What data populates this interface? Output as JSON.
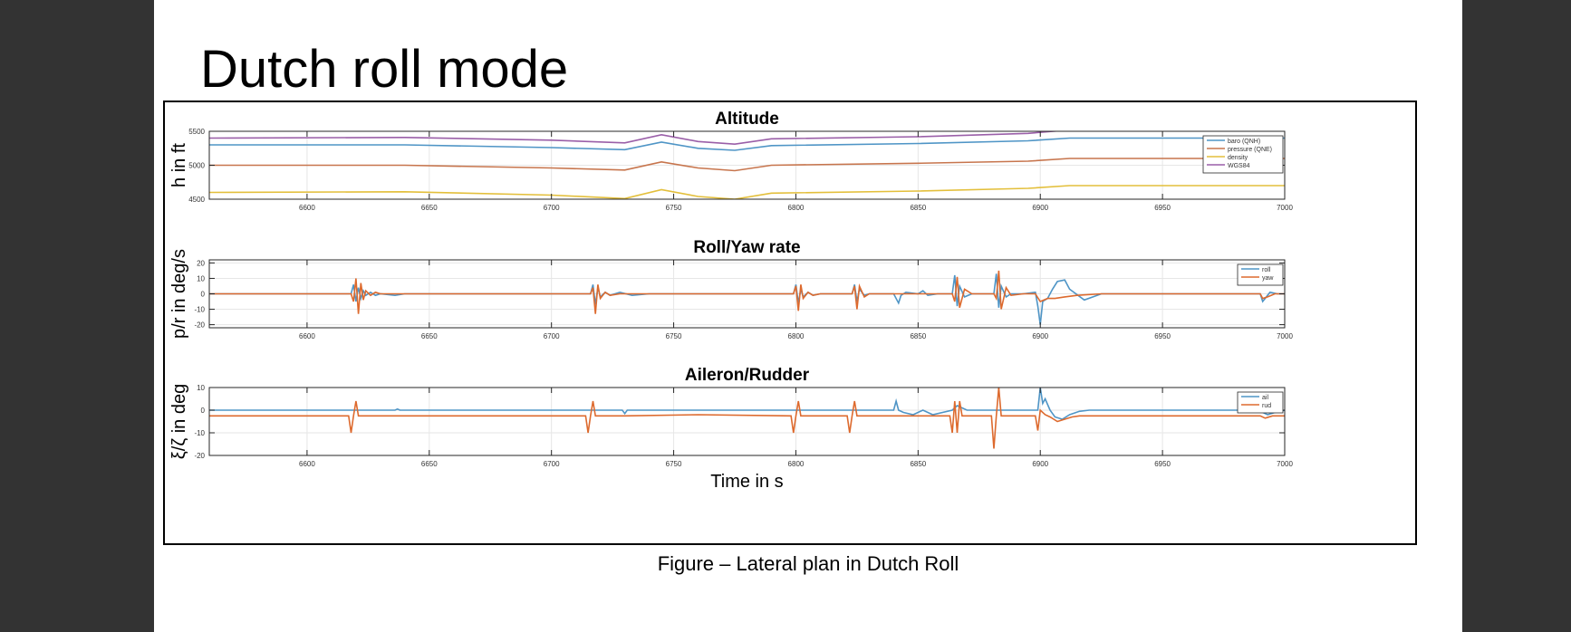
{
  "slide": {
    "title": "Dutch roll mode",
    "caption": "Figure – Lateral plan in Dutch Roll"
  },
  "chart_data": [
    {
      "type": "line",
      "title": "Altitude",
      "ylabel": "h in ft",
      "xlabel": "",
      "xlim": [
        6560,
        7000
      ],
      "ylim": [
        4500,
        5500
      ],
      "xticks": [
        6600,
        6650,
        6700,
        6750,
        6800,
        6850,
        6900,
        6950,
        7000
      ],
      "yticks": [
        4500,
        5000,
        5500
      ],
      "grid": true,
      "legend": "top-right",
      "series": [
        {
          "name": "baro (QNH)",
          "color": "#4f95c6",
          "x": [
            6560,
            6640,
            6700,
            6730,
            6745,
            6760,
            6775,
            6790,
            6850,
            6895,
            6912,
            6950,
            7000
          ],
          "y": [
            5300,
            5300,
            5260,
            5230,
            5340,
            5250,
            5220,
            5290,
            5320,
            5360,
            5400,
            5400,
            5400
          ]
        },
        {
          "name": "pressure (QNE)",
          "color": "#c7754d",
          "x": [
            6560,
            6640,
            6700,
            6730,
            6745,
            6760,
            6775,
            6790,
            6850,
            6895,
            6912,
            6950,
            7000
          ],
          "y": [
            5000,
            5000,
            4960,
            4930,
            5050,
            4960,
            4920,
            5000,
            5030,
            5060,
            5100,
            5100,
            5100
          ]
        },
        {
          "name": "density",
          "color": "#e3bf3b",
          "x": [
            6560,
            6640,
            6700,
            6730,
            6745,
            6760,
            6775,
            6790,
            6850,
            6895,
            6912,
            6950,
            7000
          ],
          "y": [
            4600,
            4610,
            4560,
            4510,
            4640,
            4540,
            4500,
            4590,
            4620,
            4660,
            4700,
            4700,
            4700
          ]
        },
        {
          "name": "WGS84",
          "color": "#9a5fa8",
          "x": [
            6560,
            6640,
            6700,
            6730,
            6745,
            6760,
            6775,
            6790,
            6850,
            6895,
            6912,
            6950,
            7000
          ],
          "y": [
            5400,
            5410,
            5370,
            5330,
            5450,
            5350,
            5310,
            5390,
            5420,
            5470,
            5520,
            5520,
            5520
          ]
        }
      ]
    },
    {
      "type": "line",
      "title": "Roll/Yaw rate",
      "ylabel": "p/r in deg/s",
      "xlabel": "",
      "xlim": [
        6560,
        7000
      ],
      "ylim": [
        -22,
        22
      ],
      "xticks": [
        6600,
        6650,
        6700,
        6750,
        6800,
        6850,
        6900,
        6950,
        7000
      ],
      "yticks": [
        -20,
        -10,
        0,
        10,
        20
      ],
      "grid": true,
      "legend": "top-right",
      "series": [
        {
          "name": "roll",
          "color": "#4f95c6",
          "x": [
            6560,
            6618,
            6619,
            6620,
            6621,
            6622,
            6623,
            6624,
            6626,
            6628,
            6630,
            6636,
            6640,
            6716,
            6717,
            6718,
            6719,
            6720,
            6722,
            6724,
            6728,
            6733,
            6740,
            6799,
            6800,
            6801,
            6802,
            6803,
            6805,
            6807,
            6810,
            6823,
            6824,
            6825,
            6826,
            6828,
            6830,
            6840,
            6842,
            6843,
            6845,
            6850,
            6852,
            6854,
            6858,
            6864,
            6865,
            6866,
            6867,
            6869,
            6872,
            6881,
            6882,
            6883,
            6884,
            6886,
            6888,
            6893,
            6898,
            6899,
            6900,
            6901,
            6903,
            6905,
            6907,
            6910,
            6912,
            6918,
            6925,
            6930,
            6990,
            6991,
            6992,
            6994,
            6997,
            7000
          ],
          "y": [
            0,
            0,
            6,
            -5,
            4,
            -3,
            2,
            -1,
            1,
            -1,
            0,
            -1,
            0,
            0,
            6,
            -7,
            4,
            -2,
            1,
            -1,
            1,
            -1,
            0,
            0,
            6,
            -6,
            3,
            -2,
            1,
            -1,
            0,
            0,
            6,
            -5,
            3,
            -1,
            0,
            0,
            -6,
            -1,
            1,
            0,
            2,
            -1,
            0,
            0,
            12,
            -8,
            5,
            -2,
            0,
            0,
            13,
            -9,
            5,
            -2,
            0,
            0,
            1,
            -8,
            -20,
            -5,
            -3,
            3,
            8,
            9,
            3,
            -4,
            0,
            0,
            0,
            -5,
            -3,
            1,
            0,
            0
          ]
        },
        {
          "name": "yaw",
          "color": "#dd6a2e",
          "x": [
            6560,
            6618,
            6619,
            6620,
            6621,
            6622,
            6623,
            6624,
            6626,
            6628,
            6630,
            6640,
            6716,
            6717,
            6718,
            6719,
            6720,
            6722,
            6724,
            6728,
            6740,
            6799,
            6800,
            6801,
            6802,
            6803,
            6805,
            6807,
            6810,
            6823,
            6824,
            6825,
            6826,
            6828,
            6830,
            6840,
            6864,
            6865,
            6866,
            6867,
            6869,
            6872,
            6881,
            6882,
            6883,
            6884,
            6886,
            6888,
            6893,
            6898,
            6900,
            6903,
            6906,
            6910,
            6915,
            6925,
            6940,
            6990,
            6991,
            6993,
            6996,
            7000
          ],
          "y": [
            0,
            0,
            -5,
            10,
            -13,
            7,
            -4,
            2,
            -1,
            1,
            0,
            0,
            0,
            4,
            -13,
            6,
            -3,
            1,
            -1,
            0,
            0,
            0,
            5,
            -11,
            6,
            -3,
            1,
            -1,
            0,
            0,
            5,
            -10,
            5,
            -2,
            0,
            0,
            0,
            -5,
            11,
            -9,
            3,
            0,
            0,
            -3,
            15,
            -10,
            4,
            -1,
            0,
            0,
            -5,
            -3,
            -3,
            -2,
            -1,
            0,
            0,
            0,
            -3,
            -2,
            0,
            0
          ]
        }
      ]
    },
    {
      "type": "line",
      "title": "Aileron/Rudder",
      "ylabel": "ξ/ζ in deg",
      "xlabel": "Time in s",
      "xlim": [
        6560,
        7000
      ],
      "ylim": [
        -20,
        10
      ],
      "xticks": [
        6600,
        6650,
        6700,
        6750,
        6800,
        6850,
        6900,
        6950,
        7000
      ],
      "yticks": [
        -20,
        -10,
        0,
        10
      ],
      "grid": true,
      "legend": "top-right",
      "series": [
        {
          "name": "ail",
          "color": "#4f95c6",
          "x": [
            6560,
            6636,
            6637,
            6638,
            6640,
            6702,
            6729,
            6730,
            6731,
            6733,
            6770,
            6840,
            6841,
            6842,
            6844,
            6848,
            6852,
            6856,
            6864,
            6866,
            6870,
            6899,
            6900,
            6901,
            6902,
            6904,
            6906,
            6909,
            6912,
            6916,
            6920,
            6990,
            6991,
            6993,
            6996,
            7000
          ],
          "y": [
            0,
            0,
            0.5,
            0,
            0,
            0,
            0,
            -1.5,
            0,
            0,
            0,
            0,
            4,
            0,
            -1,
            -2,
            0,
            -2,
            0,
            2,
            0,
            0,
            10,
            3,
            5,
            0,
            -3,
            -4,
            -2,
            -0.5,
            0,
            0,
            -1,
            -2,
            -1,
            0
          ]
        },
        {
          "name": "rud",
          "color": "#dd6a2e",
          "x": [
            6560,
            6617,
            6618,
            6619,
            6620,
            6621,
            6622,
            6714,
            6715,
            6716,
            6717,
            6718,
            6719,
            6730,
            6760,
            6798,
            6799,
            6800,
            6801,
            6802,
            6803,
            6821,
            6822,
            6823,
            6824,
            6825,
            6826,
            6840,
            6863,
            6864,
            6865,
            6866,
            6867,
            6868,
            6880,
            6881,
            6882,
            6883,
            6884,
            6885,
            6898,
            6899,
            6900,
            6902,
            6904,
            6907,
            6910,
            6913,
            6916,
            6920,
            6990,
            6992,
            6995,
            6998,
            7000
          ],
          "y": [
            -2.5,
            -2.5,
            -10,
            -2.5,
            4,
            -2.5,
            -2.5,
            -2.5,
            -10,
            -2.5,
            4,
            -2.5,
            -2.5,
            -2.5,
            -2,
            -2.5,
            -10,
            -2.5,
            4,
            -2.5,
            -2.5,
            -2.5,
            -10,
            -2.5,
            4,
            -2.5,
            -2.5,
            -2.5,
            -2.5,
            -10,
            4,
            -10,
            4,
            -2.5,
            -2.5,
            -17,
            -2.5,
            10,
            -2.5,
            -2.5,
            -2.5,
            -9,
            0,
            -2,
            -3,
            -5,
            -4,
            -3,
            -2.5,
            -2.5,
            -2.5,
            -3.5,
            -2.5,
            -2.5,
            -2.5
          ]
        }
      ]
    }
  ]
}
